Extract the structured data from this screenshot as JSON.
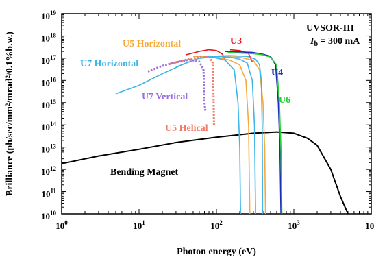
{
  "colors": {
    "bending_magnet": "#000000",
    "U3": "#e8141b",
    "U4": "#1a2fb5",
    "U6": "#22d130",
    "U5_Horizontal": "#f7a83a",
    "U7_Horizontal": "#3eb4e8",
    "U7_Vertical": "#9b6fe0",
    "U5_Helical": "#f27c6a"
  },
  "annotations": {
    "facility": "UVSOR-III",
    "beam_current_symbol": "I",
    "beam_current_subscript": "b",
    "beam_current_value": " = 300 mA"
  },
  "chart_data": {
    "type": "line",
    "xscale": "log",
    "yscale": "log",
    "xlabel": "Photon energy (eV)",
    "ylabel": "Brilliance (ph/sec/mm²/mrad²/0.1%b.w.)",
    "xlim": [
      1,
      10000
    ],
    "ylim": [
      10000000000.0,
      1e+19
    ],
    "grid": false,
    "x_ticks": [
      "10^0",
      "10^1",
      "10^2",
      "10^3",
      "10^4"
    ],
    "y_ticks": [
      "10^10",
      "10^11",
      "10^12",
      "10^13",
      "10^14",
      "10^15",
      "10^16",
      "10^17",
      "10^18",
      "10^19"
    ],
    "series": [
      {
        "name": "Bending Magnet",
        "style": "solid",
        "points": [
          [
            1,
            1800000000000.0
          ],
          [
            3,
            4000000000000.0
          ],
          [
            10,
            8000000000000.0
          ],
          [
            30,
            16000000000000.0
          ],
          [
            100,
            28000000000000.0
          ],
          [
            300,
            42000000000000.0
          ],
          [
            600,
            48000000000000.0
          ],
          [
            1000,
            42000000000000.0
          ],
          [
            1500,
            25000000000000.0
          ],
          [
            2000,
            12000000000000.0
          ],
          [
            3000,
            1000000000000.0
          ],
          [
            4000,
            60000000000.0
          ],
          [
            5000,
            10000000000.0
          ]
        ]
      },
      {
        "name": "U3",
        "style": "solid",
        "points": [
          [
            40,
            1.4e+17
          ],
          [
            60,
            2e+17
          ],
          [
            80,
            2.4e+17
          ],
          [
            100,
            2.2e+17
          ],
          [
            120,
            1.5e+17
          ],
          [
            130,
            8e+16
          ]
        ]
      },
      {
        "name": "U3",
        "style": "solid",
        "points": [
          [
            150,
            2.4e+17
          ],
          [
            200,
            2.2e+17
          ],
          [
            260,
            1.6e+17
          ],
          [
            290,
            7e+16
          ]
        ]
      },
      {
        "name": "U4",
        "style": "solid",
        "points": [
          [
            130,
            2e+17
          ],
          [
            200,
            1.9e+17
          ],
          [
            300,
            1.8e+17
          ],
          [
            400,
            1.5e+17
          ],
          [
            500,
            1.2e+17
          ],
          [
            580,
            5e+16
          ],
          [
            630,
            1000000000000000.0
          ],
          [
            660,
            10000000000000.0
          ],
          [
            680,
            10000000000.0
          ]
        ]
      },
      {
        "name": "U6",
        "style": "solid",
        "points": [
          [
            140,
            1.8e+17
          ],
          [
            200,
            1.7e+17
          ],
          [
            300,
            1.6e+17
          ],
          [
            400,
            1.4e+17
          ],
          [
            500,
            1.1e+17
          ],
          [
            600,
            5e+16
          ],
          [
            650,
            1000000000000000.0
          ],
          [
            680,
            10000000000000.0
          ],
          [
            700,
            10000000000.0
          ]
        ]
      },
      {
        "name": "U5 Horizontal",
        "style": "solid",
        "points": [
          [
            50,
            1.2e+17
          ],
          [
            100,
            1.1e+17
          ],
          [
            150,
            8e+16
          ],
          [
            200,
            5e+16
          ],
          [
            240,
            1e+16
          ],
          [
            260,
            100000000000000.0
          ],
          [
            270,
            10000000000.0
          ]
        ]
      },
      {
        "name": "U5 Horizontal",
        "style": "solid",
        "points": [
          [
            100,
            1.2e+17
          ],
          [
            200,
            1.1e+17
          ],
          [
            300,
            8e+16
          ],
          [
            360,
            3e+16
          ],
          [
            400,
            1000000000000000.0
          ],
          [
            420,
            10000000000000.0
          ],
          [
            430,
            10000000000.0
          ]
        ]
      },
      {
        "name": "U7 Horizontal",
        "style": "solid",
        "points": [
          [
            5,
            2500000000000000.0
          ],
          [
            10,
            6000000000000000.0
          ],
          [
            20,
            2e+16
          ],
          [
            40,
            6e+16
          ],
          [
            60,
            1e+17
          ],
          [
            90,
            1.1e+17
          ],
          [
            130,
            8e+16
          ],
          [
            170,
            3e+16
          ],
          [
            190,
            1000000000000000.0
          ],
          [
            200,
            10000000000000.0
          ],
          [
            205,
            10000000000.0
          ]
        ]
      },
      {
        "name": "U7 Horizontal",
        "style": "solid",
        "points": [
          [
            30,
            4e+16
          ],
          [
            60,
            1e+17
          ],
          [
            100,
            1.2e+17
          ],
          [
            150,
            1.1e+17
          ],
          [
            200,
            9e+16
          ],
          [
            250,
            6e+16
          ],
          [
            290,
            1e+16
          ],
          [
            310,
            100000000000000.0
          ],
          [
            320,
            10000000000.0
          ]
        ]
      },
      {
        "name": "U7 Horizontal",
        "style": "solid",
        "points": [
          [
            70,
            1.2e+17
          ],
          [
            150,
            1.3e+17
          ],
          [
            250,
            1.2e+17
          ],
          [
            320,
            9e+16
          ],
          [
            360,
            5e+16
          ],
          [
            380,
            1e+16
          ],
          [
            390,
            100000000000000.0
          ],
          [
            395,
            10000000000.0
          ]
        ]
      },
      {
        "name": "U7 Vertical",
        "style": "dotted",
        "points": [
          [
            13,
            2.5e+16
          ],
          [
            20,
            4.5e+16
          ],
          [
            30,
            6.5e+16
          ],
          [
            45,
            8.5e+16
          ],
          [
            60,
            7e+16
          ],
          [
            68,
            3e+16
          ],
          [
            70,
            1000000000000000.0
          ],
          [
            72,
            400000000000000.0
          ]
        ]
      },
      {
        "name": "U5 Helical",
        "style": "dotted",
        "points": [
          [
            25,
            5.5e+16
          ],
          [
            40,
            8.5e+16
          ],
          [
            60,
            1.1e+17
          ],
          [
            80,
            1.2e+17
          ],
          [
            90,
            6e+16
          ],
          [
            92,
            1000000000000000.0
          ],
          [
            93,
            100000000000000.0
          ]
        ]
      }
    ],
    "annotations": [
      {
        "text": "U5 Horizontal",
        "color_key": "U5_Horizontal"
      },
      {
        "text": "U3",
        "color_key": "U3"
      },
      {
        "text": "U7 Horizontal",
        "color_key": "U7_Horizontal"
      },
      {
        "text": "U4",
        "color_key": "U4"
      },
      {
        "text": "U7 Vertical",
        "color_key": "U7_Vertical"
      },
      {
        "text": "U6",
        "color_key": "U6"
      },
      {
        "text": "U5 Helical",
        "color_key": "U5_Helical"
      },
      {
        "text": "Bending Magnet",
        "color_key": "bending_magnet"
      }
    ]
  }
}
